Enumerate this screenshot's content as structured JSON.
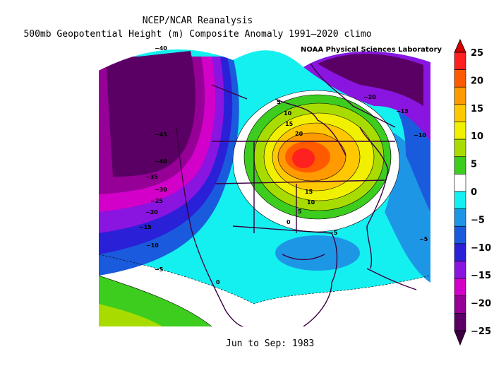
{
  "header": {
    "title": "NCEP/NCAR Reanalysis",
    "subtitle": "500mb Geopotential Height (m) Composite Anomaly 1991–2020 climo",
    "credit": "NOAA Physical Sciences Laboratory"
  },
  "footer": {
    "period": "Jun to Sep: 1983"
  },
  "colorbar": {
    "ticks": [
      "25",
      "20",
      "15",
      "10",
      "5",
      "0",
      "−5",
      "−10",
      "−15",
      "−20",
      "−25"
    ],
    "colors": [
      "#ff2020",
      "#ff5a00",
      "#ff9a00",
      "#ffc800",
      "#f0f000",
      "#a8dc00",
      "#3ccd1e",
      "#ffffff",
      "#14f0f0",
      "#1e96e6",
      "#1a5adc",
      "#2a20d8",
      "#8a14e0",
      "#d200c8",
      "#960096",
      "#5a0064"
    ]
  },
  "contour_labels": {
    "neg_west": [
      "−40",
      "−45",
      "−40",
      "−35",
      "−30",
      "−25",
      "−20",
      "−15",
      "−10",
      "−5"
    ],
    "neg_east": [
      "−20",
      "−15",
      "−10",
      "−5",
      "−5"
    ],
    "pos": [
      "5",
      "10",
      "15",
      "20",
      "15",
      "10",
      "5"
    ],
    "zero": [
      "0",
      "0"
    ]
  }
}
